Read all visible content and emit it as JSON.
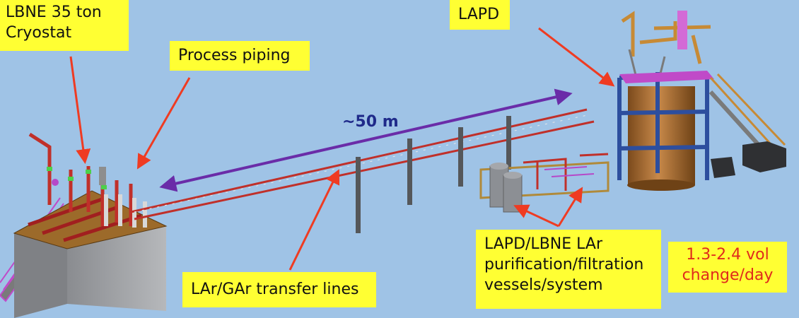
{
  "labels": {
    "cryostat": "LBNE 35 ton Cryostat",
    "cryostat_line1": "LBNE 35 ton",
    "cryostat_line2": "Cryostat",
    "lapd": "LAPD",
    "process_piping": "Process piping",
    "distance": "~50 m",
    "transfer_lines": "LAr/GAr transfer lines",
    "purification_line1": "LAPD/LBNE LAr",
    "purification_line2": "purification/filtration",
    "purification_line3": "vessels/system",
    "rate_line1": "1.3-2.4 vol",
    "rate_line2": "change/day"
  },
  "colors": {
    "background": "#9fc3e6",
    "callout": "#ffff33",
    "arrow_red": "#ef3b22",
    "arrow_purple": "#6a2ca8",
    "tank_brown": "#a86b2f",
    "frame_blue": "#2d4e9e",
    "pipe_red": "#c0302a"
  }
}
